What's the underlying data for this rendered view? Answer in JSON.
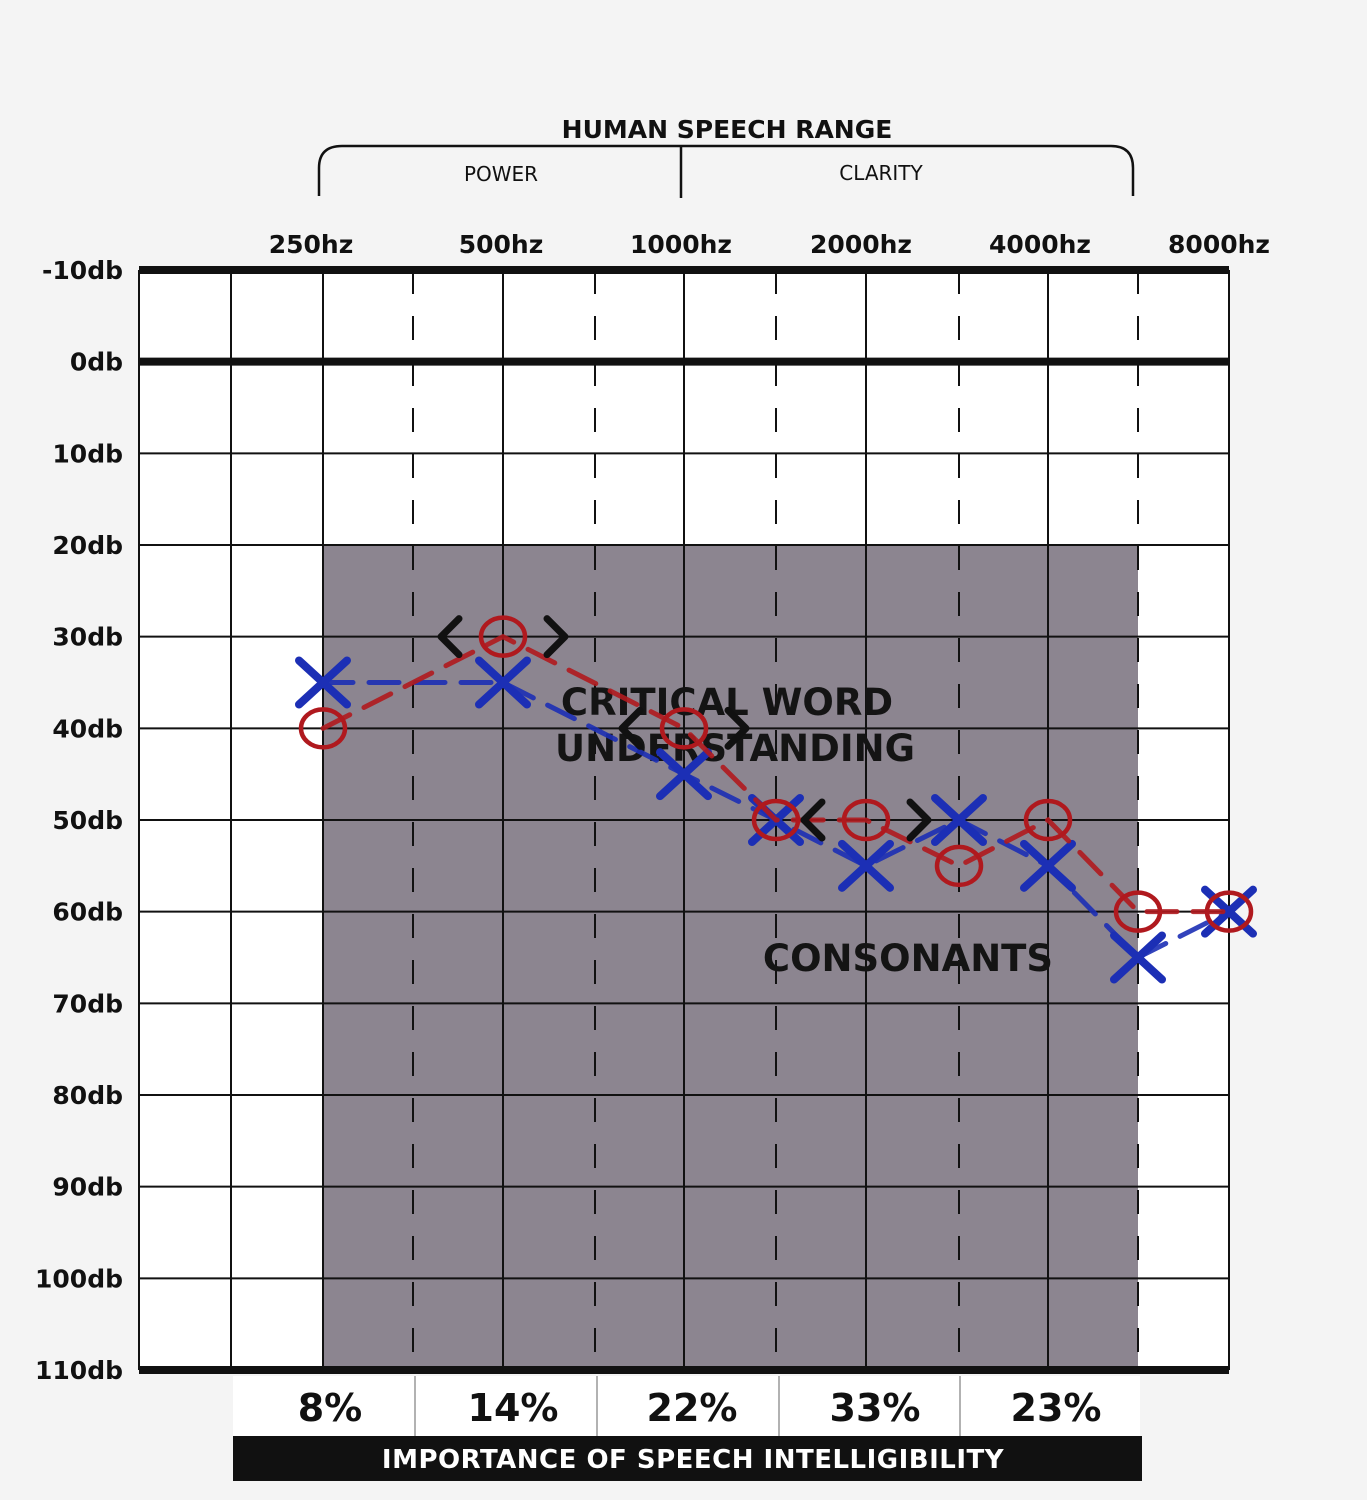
{
  "chart_data": {
    "type": "line",
    "title": "HUMAN SPEECH RANGE",
    "range_groups": [
      {
        "label": "POWER"
      },
      {
        "label": "CLARITY"
      }
    ],
    "x_axis": {
      "tick_labels": [
        "250hz",
        "500hz",
        "1000hz",
        "2000hz",
        "4000hz",
        "8000hz"
      ]
    },
    "y_axis": {
      "tick_labels": [
        "-10db",
        "0db",
        "10db",
        "20db",
        "30db",
        "40db",
        "50db",
        "60db",
        "70db",
        "80db",
        "90db",
        "100db",
        "110db"
      ],
      "range": [
        -10,
        110
      ],
      "inverted": true
    },
    "shaded_region": {
      "x_from": "250hz",
      "x_to": "6000hz",
      "y_from": 20,
      "y_to": 110
    },
    "annotations": [
      "CRITICAL WORD",
      "UNDERSTANDING",
      "CONSONANTS"
    ],
    "importance": {
      "values": [
        "8%",
        "14%",
        "22%",
        "33%",
        "23%"
      ],
      "label": "IMPORTANCE OF SPEECH  INTELLIGIBILITY"
    },
    "series": [
      {
        "marker": "X",
        "color": "#1c2fb5",
        "x": [
          "250hz",
          "500hz",
          "1000hz",
          "1500hz",
          "2000hz",
          "3000hz",
          "4000hz",
          "6000hz",
          "8000hz"
        ],
        "y": [
          35,
          35,
          45,
          50,
          55,
          50,
          55,
          65,
          60
        ]
      },
      {
        "marker": "O",
        "color": "#b0191e",
        "x": [
          "250hz",
          "500hz",
          "1000hz",
          "1500hz",
          "2000hz",
          "3000hz",
          "4000hz",
          "6000hz",
          "8000hz"
        ],
        "y": [
          40,
          30,
          40,
          50,
          50,
          55,
          50,
          60,
          60
        ]
      },
      {
        "marker": "<>",
        "color": "#111111",
        "x": [
          "500hz",
          "1000hz",
          "2000hz"
        ],
        "y": [
          30,
          40,
          50
        ]
      }
    ]
  }
}
